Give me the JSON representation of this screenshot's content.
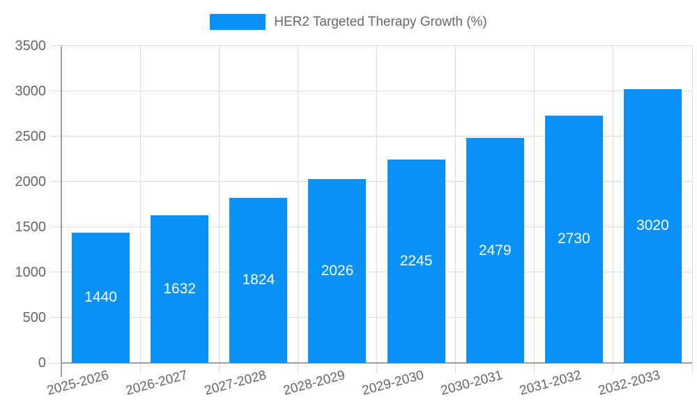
{
  "chart_data": {
    "type": "bar",
    "title": "HER2 Targeted Therapy Growth (%)",
    "categories": [
      "2025-2026",
      "2026-2027",
      "2027-2028",
      "2028-2029",
      "2029-2030",
      "2030-2031",
      "2031-2032",
      "2032-2033"
    ],
    "values": [
      1440,
      1632,
      1824,
      2026,
      2245,
      2479,
      2730,
      3020
    ],
    "xlabel": "",
    "ylabel": "",
    "ylim": [
      0,
      3500
    ],
    "ytick_step": 500,
    "yticks": [
      0,
      500,
      1000,
      1500,
      2000,
      2500,
      3000,
      3500
    ],
    "grid": true,
    "legend_position": "top",
    "bar_value_labels": "inside-center",
    "x_tick_rotation_deg": -15,
    "colors": {
      "bar": "#0892f8",
      "bar_label": "#ffffff",
      "grid": "#dcdcdc",
      "axis": "#9e9e9e",
      "tick_text": "#666666",
      "legend_text": "#666666",
      "background": "#ffffff"
    }
  }
}
